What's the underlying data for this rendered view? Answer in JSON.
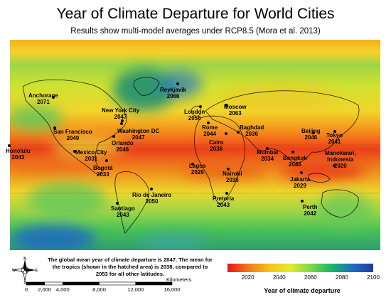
{
  "title": "Year of Climate Departure for World Cities",
  "subtitle": "Results show multi-model averages under RCP8.5 (Mora et al. 2013)",
  "cities": [
    {
      "name": "Anchorage",
      "year": "2071"
    },
    {
      "name": "Reykjavik",
      "year": "2066"
    },
    {
      "name": "New York City",
      "year": "2047"
    },
    {
      "name": "Washington DC",
      "year": "2047"
    },
    {
      "name": "San Francisco",
      "year": "2049"
    },
    {
      "name": "Orlando",
      "year": "2046"
    },
    {
      "name": "Honolulu",
      "year": "2043"
    },
    {
      "name": "Mexico City",
      "year": "2031"
    },
    {
      "name": "Bogotá",
      "year": "2033"
    },
    {
      "name": "Rio de Janeiro",
      "year": "2050"
    },
    {
      "name": "Santiago",
      "year": "2043"
    },
    {
      "name": "London",
      "year": "2056"
    },
    {
      "name": "Rome",
      "year": "2044"
    },
    {
      "name": "Moscow",
      "year": "2063"
    },
    {
      "name": "Baghdad",
      "year": "2036"
    },
    {
      "name": "Cairo",
      "year": "2036"
    },
    {
      "name": "Lagos",
      "year": "2029"
    },
    {
      "name": "Nairobi",
      "year": "2036"
    },
    {
      "name": "Pretoria",
      "year": "2043"
    },
    {
      "name": "Mumbai",
      "year": "2034"
    },
    {
      "name": "Beijing",
      "year": "2046"
    },
    {
      "name": "Tokyo",
      "year": "2041"
    },
    {
      "name": "Bangkok",
      "year": "2046"
    },
    {
      "name": "Jakarta",
      "year": "2029"
    },
    {
      "name": "Manokwari, Indonesia",
      "year": "2020"
    },
    {
      "name": "Perth",
      "year": "2042"
    }
  ],
  "note": {
    "line1": "The global mean year of climate departure is 2047. The mean for",
    "line2": "the tropics (shown in the hatched area) is 2038, compared to",
    "line3": "2053 for all other latitudes."
  },
  "compass": {
    "n": "N",
    "s": "S",
    "e": "E",
    "w": "W"
  },
  "scale": {
    "unit": "Kilometers",
    "ticks": [
      {
        "label": "0",
        "km": 0
      },
      {
        "label": "2,000",
        "km": 2000
      },
      {
        "label": "4,000",
        "km": 4000
      },
      {
        "label": "8,000",
        "km": 8000
      },
      {
        "label": "12,000",
        "km": 12000
      },
      {
        "label": "16,000",
        "km": 16000
      }
    ]
  },
  "legend": {
    "title": "Year of climate departure",
    "ticks": [
      {
        "label": "2020",
        "value": 2020
      },
      {
        "label": "2040",
        "value": 2040
      },
      {
        "label": "2060",
        "value": 2060
      },
      {
        "label": "2080",
        "value": 2080
      },
      {
        "label": "2100",
        "value": 2100
      }
    ],
    "min": 2007,
    "max": 2100,
    "colors": [
      "#e8141a",
      "#f07819",
      "#f6c21a",
      "#e3ea2b",
      "#7cd84a",
      "#19b56a",
      "#1e6dbf",
      "#1a3d9a"
    ]
  }
}
